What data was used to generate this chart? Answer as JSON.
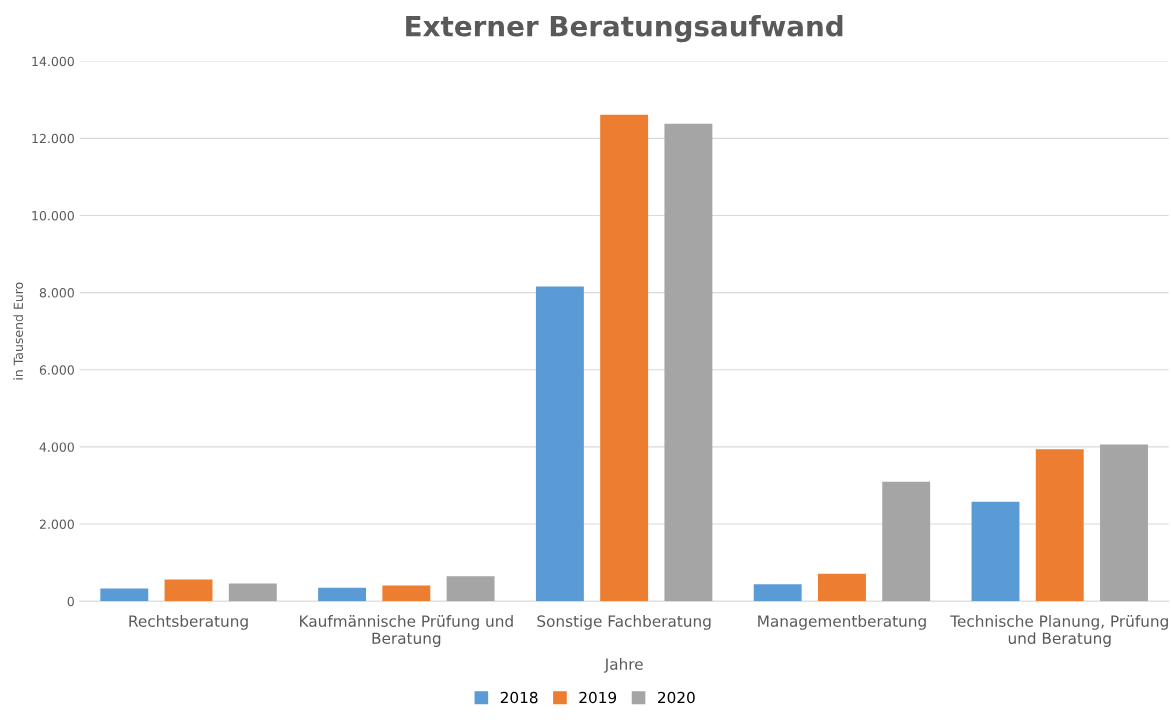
{
  "chart_data": {
    "type": "bar",
    "title": "Externer Beratungsaufwand",
    "xlabel": "Jahre",
    "ylabel": "in Tausend Euro",
    "categories": [
      "Rechtsberatung",
      "Kaufmännische Prüfung und Beratung",
      "Sonstige Fachberatung",
      "Managementberatung",
      "Technische Planung, Prüfung und Beratung"
    ],
    "series": [
      {
        "name": "2018",
        "color": "#5b9bd5",
        "values": [
          330,
          350,
          8160,
          440,
          2580
        ]
      },
      {
        "name": "2019",
        "color": "#ed7d31",
        "values": [
          560,
          410,
          12610,
          710,
          3940
        ]
      },
      {
        "name": "2020",
        "color": "#a5a5a5",
        "values": [
          460,
          650,
          12380,
          3100,
          4060
        ]
      }
    ],
    "ylim": [
      0,
      14000
    ],
    "yticks": [
      {
        "value": 0,
        "label": "0"
      },
      {
        "value": 2000,
        "label": "2.000"
      },
      {
        "value": 4000,
        "label": "4.000"
      },
      {
        "value": 6000,
        "label": "6.000"
      },
      {
        "value": 8000,
        "label": "8.000"
      },
      {
        "value": 10000,
        "label": "10.000"
      },
      {
        "value": 12000,
        "label": "12.000"
      },
      {
        "value": 14000,
        "label": "14.000"
      }
    ],
    "grid": "y",
    "legend": "bottom"
  }
}
